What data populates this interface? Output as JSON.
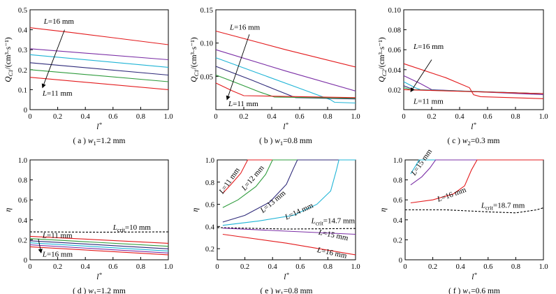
{
  "chart_data": [
    {
      "id": "a",
      "type": "line",
      "caption": "( a ) w1=1.2 mm",
      "ylabel": "Q_C1/(cm³·s⁻¹)",
      "xlabel": "l*",
      "xlim": [
        0,
        1
      ],
      "ylim": [
        0,
        0.5
      ],
      "xticks": [
        "0",
        "0.2",
        "0.4",
        "0.6",
        "0.8",
        "1.0"
      ],
      "yticks": [
        "0",
        "0.1",
        "0.2",
        "0.3",
        "0.4",
        "0.5"
      ],
      "annotations": [
        {
          "text": "L=16 mm",
          "at": [
            0.1,
            0.43
          ],
          "anchor": "start"
        },
        {
          "text": "L=11 mm",
          "at": [
            0.09,
            0.07
          ],
          "anchor": "start"
        }
      ],
      "arrow": {
        "from": [
          0.25,
          0.4
        ],
        "to": [
          0.09,
          0.11
        ]
      },
      "series": [
        {
          "color": "#e31a1c",
          "points": [
            [
              0.0,
              0.41
            ],
            [
              0.3,
              0.386
            ],
            [
              0.6,
              0.36
            ],
            [
              1.0,
              0.325
            ]
          ]
        },
        {
          "color": "#7b2fa6",
          "points": [
            [
              0.0,
              0.305
            ],
            [
              1.0,
              0.25
            ]
          ]
        },
        {
          "color": "#1fb4d6",
          "points": [
            [
              0.0,
              0.275
            ],
            [
              1.0,
              0.212
            ]
          ]
        },
        {
          "color": "#2e2a7a",
          "points": [
            [
              0.0,
              0.235
            ],
            [
              1.0,
              0.173
            ]
          ]
        },
        {
          "color": "#2e9b3c",
          "points": [
            [
              0.0,
              0.2
            ],
            [
              1.0,
              0.14
            ]
          ]
        },
        {
          "color": "#e31a1c",
          "points": [
            [
              0.0,
              0.162
            ],
            [
              1.0,
              0.1
            ]
          ]
        }
      ]
    },
    {
      "id": "b",
      "type": "line",
      "caption": "( b ) w1=0.8 mm",
      "ylabel": "Q_C1/(cm³·s⁻¹)",
      "xlabel": "l*",
      "xlim": [
        0,
        1
      ],
      "ylim": [
        0,
        0.15
      ],
      "xticks": [
        "0",
        "0.2",
        "0.4",
        "0.6",
        "0.8",
        "1.0"
      ],
      "yticks": [
        "0.05",
        "0.10",
        "0.15"
      ],
      "annotations": [
        {
          "text": "L=16 mm",
          "at": [
            0.1,
            0.12
          ],
          "anchor": "start"
        },
        {
          "text": "L=11 mm",
          "at": [
            0.09,
            0.005
          ],
          "anchor": "start"
        }
      ],
      "arrow": {
        "from": [
          0.24,
          0.113
        ],
        "to": [
          0.08,
          0.015
        ]
      },
      "series": [
        {
          "color": "#e31a1c",
          "points": [
            [
              0.0,
              0.118
            ],
            [
              0.5,
              0.09
            ],
            [
              1.0,
              0.064
            ]
          ]
        },
        {
          "color": "#7b2fa6",
          "points": [
            [
              0.0,
              0.09
            ],
            [
              0.5,
              0.058
            ],
            [
              1.0,
              0.028
            ]
          ]
        },
        {
          "color": "#1fb4d6",
          "points": [
            [
              0.0,
              0.078
            ],
            [
              0.3,
              0.055
            ],
            [
              0.6,
              0.032
            ],
            [
              0.82,
              0.015
            ],
            [
              0.85,
              0.011
            ],
            [
              1.0,
              0.01
            ]
          ]
        },
        {
          "color": "#2e2a7a",
          "points": [
            [
              0.0,
              0.065
            ],
            [
              0.25,
              0.045
            ],
            [
              0.45,
              0.028
            ],
            [
              0.57,
              0.018
            ],
            [
              1.0,
              0.016
            ]
          ]
        },
        {
          "color": "#2e9b3c",
          "points": [
            [
              0.0,
              0.052
            ],
            [
              0.15,
              0.04
            ],
            [
              0.32,
              0.026
            ],
            [
              0.42,
              0.019
            ],
            [
              1.0,
              0.017
            ]
          ]
        },
        {
          "color": "#e31a1c",
          "points": [
            [
              0.0,
              0.04
            ],
            [
              0.12,
              0.028
            ],
            [
              0.2,
              0.021
            ],
            [
              1.0,
              0.018
            ]
          ]
        }
      ]
    },
    {
      "id": "c",
      "type": "line",
      "caption": "( c ) w2=0.3 mm",
      "ylabel": "Q_C2/(cm³·s⁻¹)",
      "xlabel": "l*",
      "xlim": [
        0,
        1
      ],
      "ylim": [
        0,
        0.1
      ],
      "xticks": [
        "0",
        "0.2",
        "0.4",
        "0.6",
        "0.8",
        "1.0"
      ],
      "yticks": [
        "0.02",
        "0.04",
        "0.06",
        "0.08",
        "0.10"
      ],
      "annotations": [
        {
          "text": "L=16 mm",
          "at": [
            0.07,
            0.061
          ],
          "anchor": "start"
        },
        {
          "text": "L=11 mm",
          "at": [
            0.07,
            0.006
          ],
          "anchor": "start"
        }
      ],
      "arrow": {
        "from": [
          0.2,
          0.05
        ],
        "to": [
          0.05,
          0.018
        ]
      },
      "series": [
        {
          "color": "#e31a1c",
          "points": [
            [
              0.0,
              0.046
            ],
            [
              0.3,
              0.032
            ],
            [
              0.47,
              0.022
            ],
            [
              0.5,
              0.015
            ],
            [
              0.55,
              0.013
            ],
            [
              1.0,
              0.011
            ]
          ]
        },
        {
          "color": "#7b2fa6",
          "points": [
            [
              0.0,
              0.034
            ],
            [
              0.12,
              0.026
            ],
            [
              0.2,
              0.02
            ],
            [
              1.0,
              0.015
            ]
          ]
        },
        {
          "color": "#1fb4d6",
          "points": [
            [
              0.0,
              0.028
            ],
            [
              0.08,
              0.022
            ],
            [
              0.12,
              0.02
            ],
            [
              1.0,
              0.016
            ]
          ]
        },
        {
          "color": "#2e2a7a",
          "points": [
            [
              0.0,
              0.024
            ],
            [
              0.07,
              0.02
            ],
            [
              1.0,
              0.016
            ]
          ]
        },
        {
          "color": "#2e9b3c",
          "points": [
            [
              0.0,
              0.022
            ],
            [
              0.05,
              0.02
            ],
            [
              1.0,
              0.016
            ]
          ]
        },
        {
          "color": "#e31a1c",
          "points": [
            [
              0.0,
              0.02
            ],
            [
              1.0,
              0.016
            ]
          ]
        }
      ]
    },
    {
      "id": "d",
      "type": "line",
      "caption": "( d ) w1=1.2 mm",
      "ylabel": "η",
      "xlabel": "l*",
      "xlim": [
        0,
        1
      ],
      "ylim": [
        0,
        1.0
      ],
      "xticks": [
        "0",
        "0.2",
        "0.4",
        "0.6",
        "0.8",
        "1.0"
      ],
      "yticks": [
        "0",
        "0.2",
        "0.4",
        "0.6",
        "0.8",
        "1.0"
      ],
      "annotations": [
        {
          "text": "L=11 mm",
          "at": [
            0.09,
            0.22
          ],
          "anchor": "start"
        },
        {
          "text": "L=16 mm",
          "at": [
            0.09,
            0.03
          ],
          "anchor": "start"
        },
        {
          "text": "L_crit=10 mm",
          "at": [
            0.6,
            0.3
          ],
          "anchor": "start"
        }
      ],
      "arrow": {
        "from": [
          0.06,
          0.21
        ],
        "to": [
          0.08,
          0.07
        ]
      },
      "series": [
        {
          "color": "#000000",
          "dashed": true,
          "points": [
            [
              0.0,
              0.28
            ],
            [
              0.5,
              0.276
            ],
            [
              1.0,
              0.28
            ]
          ]
        },
        {
          "color": "#e31a1c",
          "points": [
            [
              0.0,
              0.235
            ],
            [
              1.0,
              0.165
            ]
          ]
        },
        {
          "color": "#2e9b3c",
          "points": [
            [
              0.0,
              0.212
            ],
            [
              1.0,
              0.135
            ]
          ]
        },
        {
          "color": "#2e2a7a",
          "points": [
            [
              0.0,
              0.19
            ],
            [
              1.0,
              0.11
            ]
          ]
        },
        {
          "color": "#1fb4d6",
          "points": [
            [
              0.0,
              0.17
            ],
            [
              1.0,
              0.088
            ]
          ]
        },
        {
          "color": "#7b2fa6",
          "points": [
            [
              0.0,
              0.15
            ],
            [
              1.0,
              0.068
            ]
          ]
        },
        {
          "color": "#e31a1c",
          "points": [
            [
              0.0,
              0.13
            ],
            [
              1.0,
              0.05
            ]
          ]
        }
      ]
    },
    {
      "id": "e",
      "type": "line",
      "caption": "( e ) w1=0.8 mm",
      "ylabel": "η",
      "xlabel": "l*",
      "xlim": [
        0,
        1
      ],
      "ylim": [
        0.1,
        1.0
      ],
      "xticks": [
        "0",
        "0.2",
        "0.4",
        "0.6",
        "0.8",
        "1.0"
      ],
      "yticks": [
        "0.2",
        "0.4",
        "0.6",
        "0.8",
        "1.0"
      ],
      "annotations": [
        {
          "text": "L=11 mm",
          "at": [
            0.04,
            0.69
          ],
          "anchor": "start",
          "rotate": -55
        },
        {
          "text": "L=12 mm",
          "at": [
            0.2,
            0.72
          ],
          "anchor": "start",
          "rotate": -50
        },
        {
          "text": "L=13 mm",
          "at": [
            0.33,
            0.52
          ],
          "anchor": "start",
          "rotate": -40
        },
        {
          "text": "L=14 mm",
          "at": [
            0.5,
            0.46
          ],
          "anchor": "start",
          "rotate": -25
        },
        {
          "text": "L_crit=14.7 mm",
          "at": [
            0.68,
            0.43
          ],
          "anchor": "start"
        },
        {
          "text": "L=15 mm",
          "at": [
            0.73,
            0.33
          ],
          "anchor": "start",
          "rotate": 12
        },
        {
          "text": "L=16 mm",
          "at": [
            0.72,
            0.17
          ],
          "anchor": "start",
          "rotate": 12
        }
      ],
      "series": [
        {
          "color": "#e31a1c",
          "points": [
            [
              0.04,
              0.7
            ],
            [
              0.1,
              0.78
            ],
            [
              0.17,
              0.88
            ],
            [
              0.22,
              1.0
            ],
            [
              1.0,
              1.0
            ]
          ]
        },
        {
          "color": "#2e9b3c",
          "points": [
            [
              0.04,
              0.57
            ],
            [
              0.15,
              0.64
            ],
            [
              0.28,
              0.76
            ],
            [
              0.35,
              0.87
            ],
            [
              0.4,
              1.0
            ],
            [
              1.0,
              1.0
            ]
          ]
        },
        {
          "color": "#2e2a7a",
          "points": [
            [
              0.04,
              0.44
            ],
            [
              0.2,
              0.5
            ],
            [
              0.38,
              0.62
            ],
            [
              0.5,
              0.78
            ],
            [
              0.55,
              0.92
            ],
            [
              0.58,
              1.0
            ],
            [
              1.0,
              1.0
            ]
          ]
        },
        {
          "color": "#1fb4d6",
          "points": [
            [
              0.04,
              0.41
            ],
            [
              0.3,
              0.45
            ],
            [
              0.55,
              0.5
            ],
            [
              0.72,
              0.6
            ],
            [
              0.82,
              0.72
            ],
            [
              0.86,
              0.9
            ],
            [
              0.88,
              1.0
            ],
            [
              1.0,
              1.0
            ]
          ]
        },
        {
          "color": "#000000",
          "dashed": true,
          "points": [
            [
              0.0,
              0.39
            ],
            [
              0.5,
              0.377
            ],
            [
              1.0,
              0.382
            ]
          ]
        },
        {
          "color": "#7b2fa6",
          "points": [
            [
              0.04,
              0.385
            ],
            [
              0.5,
              0.358
            ],
            [
              1.0,
              0.33
            ]
          ]
        },
        {
          "color": "#e31a1c",
          "points": [
            [
              0.04,
              0.33
            ],
            [
              0.5,
              0.25
            ],
            [
              1.0,
              0.145
            ]
          ]
        }
      ]
    },
    {
      "id": "f",
      "type": "line",
      "caption": "( f ) w1=0.6 mm",
      "ylabel": "η",
      "xlabel": "l*",
      "xlim": [
        0,
        1
      ],
      "ylim": [
        0,
        1.0
      ],
      "xticks": [
        "0",
        "0.2",
        "0.4",
        "0.6",
        "0.8",
        "1.0"
      ],
      "yticks": [
        "0",
        "0.2",
        "0.4",
        "0.6",
        "0.8",
        "1.0"
      ],
      "annotations": [
        {
          "text": "L=15 mm",
          "at": [
            0.07,
            0.84
          ],
          "anchor": "start",
          "rotate": -55
        },
        {
          "text": "L=16 mm",
          "at": [
            0.24,
            0.58
          ],
          "anchor": "start",
          "rotate": -20
        },
        {
          "text": "L_crit=18.7 mm",
          "at": [
            0.55,
            0.52
          ],
          "anchor": "start"
        }
      ],
      "series": [
        {
          "color": "#1fb4d6",
          "points": [
            [
              0.04,
              0.86
            ],
            [
              0.08,
              0.95
            ],
            [
              0.1,
              1.0
            ],
            [
              1.0,
              1.0
            ]
          ]
        },
        {
          "color": "#7b2fa6",
          "points": [
            [
              0.04,
              0.75
            ],
            [
              0.12,
              0.83
            ],
            [
              0.18,
              0.92
            ],
            [
              0.22,
              1.0
            ],
            [
              1.0,
              1.0
            ]
          ]
        },
        {
          "color": "#e31a1c",
          "points": [
            [
              0.04,
              0.57
            ],
            [
              0.2,
              0.6
            ],
            [
              0.35,
              0.66
            ],
            [
              0.43,
              0.74
            ],
            [
              0.48,
              0.9
            ],
            [
              0.52,
              1.0
            ],
            [
              1.0,
              1.0
            ]
          ]
        },
        {
          "color": "#000000",
          "dashed": true,
          "points": [
            [
              0.0,
              0.5
            ],
            [
              0.3,
              0.5
            ],
            [
              0.6,
              0.48
            ],
            [
              0.8,
              0.47
            ],
            [
              0.95,
              0.5
            ],
            [
              1.0,
              0.52
            ]
          ]
        }
      ]
    }
  ]
}
